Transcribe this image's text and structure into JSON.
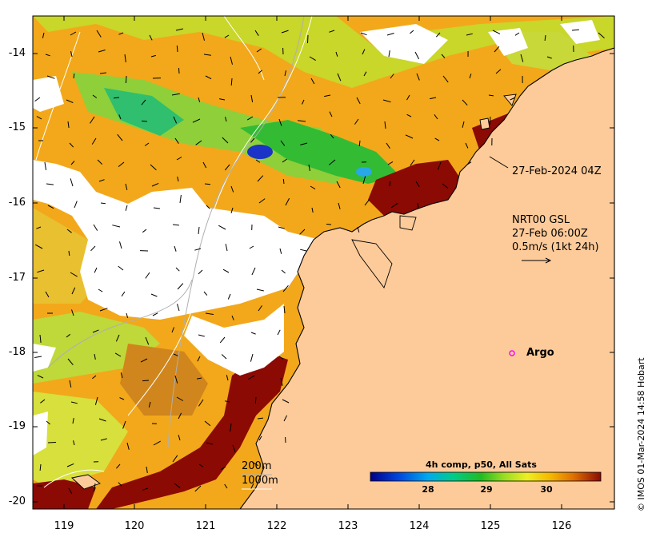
{
  "lat_ticks": [
    "-14",
    "-15",
    "-16",
    "-17",
    "-18",
    "-19",
    "-20"
  ],
  "lon_ticks": [
    "119",
    "120",
    "121",
    "122",
    "123",
    "124",
    "125",
    "126"
  ],
  "annotation_swath": "27-Feb-2024 04Z",
  "current_label": {
    "line1": "NRT00 GSL",
    "line2": "27-Feb 06:00Z",
    "line3": "0.5m/s (1kt 24h)"
  },
  "argo_label": "Argo",
  "depth_legend": {
    "shallow": "200m",
    "deep": "1000m"
  },
  "colorbar": {
    "title": "4h comp, p50, All Sats",
    "ticks": [
      "28",
      "29",
      "30"
    ]
  },
  "credit": "© IMOS 01-Mar-2024 14:58 Hobart",
  "colors": {
    "land": "#fdcb9a",
    "warm": "#8b0a04",
    "argo": "#ff00ff",
    "cloud": "#ffffff"
  }
}
